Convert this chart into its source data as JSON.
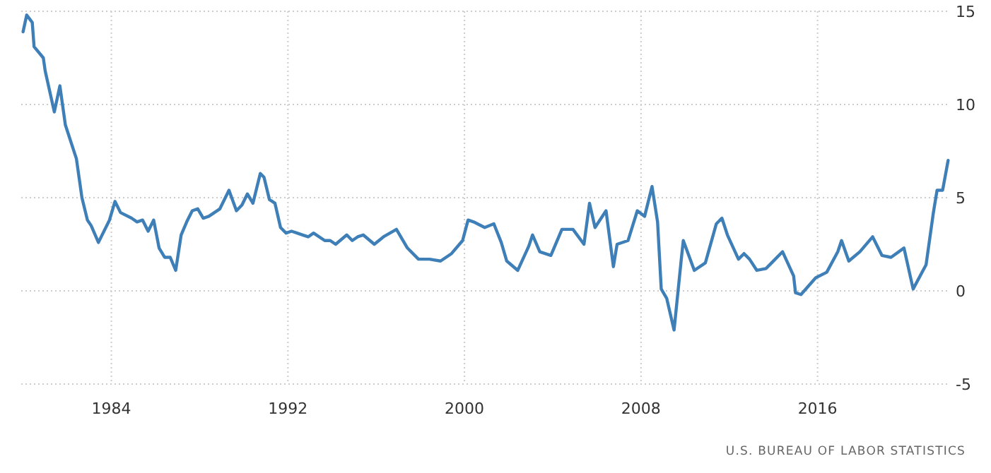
{
  "chart_data": {
    "type": "line",
    "annotations": [
      "U.S. BUREAU OF LABOR STATISTICS"
    ],
    "x": [
      "1980-01",
      "1980-03",
      "1980-06",
      "1980-07",
      "1980-12",
      "1981-01",
      "1981-06",
      "1981-09",
      "1981-12",
      "1982-06",
      "1982-09",
      "1982-12",
      "1983-02",
      "1983-06",
      "1983-12",
      "1984-03",
      "1984-06",
      "1984-12",
      "1985-03",
      "1985-06",
      "1985-09",
      "1985-12",
      "1986-03",
      "1986-06",
      "1986-09",
      "1986-12",
      "1987-03",
      "1987-06",
      "1987-09",
      "1987-12",
      "1988-03",
      "1988-06",
      "1988-09",
      "1988-12",
      "1989-05",
      "1989-09",
      "1989-12",
      "1990-03",
      "1990-06",
      "1990-10",
      "1990-12",
      "1991-03",
      "1991-06",
      "1991-09",
      "1991-12",
      "1992-03",
      "1992-06",
      "1992-09",
      "1992-12",
      "1993-03",
      "1993-09",
      "1993-12",
      "1994-03",
      "1994-09",
      "1994-12",
      "1995-03",
      "1995-06",
      "1995-12",
      "1996-05",
      "1996-12",
      "1997-06",
      "1997-12",
      "1998-06",
      "1998-12",
      "1999-06",
      "1999-12",
      "2000-03",
      "2000-06",
      "2000-12",
      "2001-05",
      "2001-09",
      "2001-12",
      "2002-06",
      "2002-12",
      "2003-02",
      "2003-06",
      "2003-12",
      "2004-06",
      "2004-12",
      "2005-06",
      "2005-09",
      "2005-12",
      "2006-06",
      "2006-10",
      "2006-12",
      "2007-06",
      "2007-11",
      "2008-03",
      "2008-07",
      "2008-10",
      "2008-12",
      "2009-03",
      "2009-07",
      "2009-11",
      "2009-12",
      "2010-06",
      "2010-12",
      "2011-06",
      "2011-09",
      "2011-12",
      "2012-06",
      "2012-09",
      "2012-12",
      "2013-04",
      "2013-09",
      "2013-12",
      "2014-06",
      "2014-12",
      "2015-01",
      "2015-04",
      "2015-12",
      "2016-06",
      "2016-12",
      "2017-02",
      "2017-06",
      "2017-12",
      "2018-07",
      "2018-12",
      "2019-05",
      "2019-12",
      "2020-05",
      "2020-12",
      "2021-04",
      "2021-06",
      "2021-09",
      "2021-12"
    ],
    "series": [
      {
        "color": "#3f7fb8",
        "values": [
          13.9,
          14.8,
          14.4,
          13.1,
          12.5,
          11.8,
          9.6,
          11.0,
          8.9,
          7.1,
          5.0,
          3.8,
          3.5,
          2.6,
          3.8,
          4.8,
          4.2,
          3.9,
          3.7,
          3.8,
          3.2,
          3.8,
          2.3,
          1.8,
          1.8,
          1.1,
          3.0,
          3.7,
          4.3,
          4.4,
          3.9,
          4.0,
          4.2,
          4.4,
          5.4,
          4.3,
          4.6,
          5.2,
          4.7,
          6.3,
          6.1,
          4.9,
          4.7,
          3.4,
          3.1,
          3.2,
          3.1,
          3.0,
          2.9,
          3.1,
          2.7,
          2.7,
          2.5,
          3.0,
          2.7,
          2.9,
          3.0,
          2.5,
          2.9,
          3.3,
          2.3,
          1.7,
          1.7,
          1.6,
          2.0,
          2.7,
          3.8,
          3.7,
          3.4,
          3.6,
          2.6,
          1.6,
          1.1,
          2.4,
          3.0,
          2.1,
          1.9,
          3.3,
          3.3,
          2.5,
          4.7,
          3.4,
          4.3,
          1.3,
          2.5,
          2.7,
          4.3,
          4.0,
          5.6,
          3.7,
          0.1,
          -0.4,
          -2.1,
          1.8,
          2.7,
          1.1,
          1.5,
          3.6,
          3.9,
          3.0,
          1.7,
          2.0,
          1.7,
          1.1,
          1.2,
          1.5,
          2.1,
          0.8,
          -0.1,
          -0.2,
          0.7,
          1.0,
          2.1,
          2.7,
          1.6,
          2.1,
          2.9,
          1.9,
          1.8,
          2.3,
          0.1,
          1.4,
          4.2,
          5.4,
          5.4,
          7.0
        ]
      }
    ],
    "xlim": [
      "1979-12",
      "2022-01"
    ],
    "xticks": [
      {
        "value": "1984",
        "label": "1984"
      },
      {
        "value": "1992",
        "label": "1992"
      },
      {
        "value": "2000",
        "label": "2000"
      },
      {
        "value": "2008",
        "label": "2008"
      },
      {
        "value": "2016",
        "label": "2016"
      }
    ],
    "ylim": [
      -5,
      15
    ],
    "yticks": [
      -5,
      0,
      5,
      10,
      15
    ],
    "grid": true,
    "line_style": "solid"
  }
}
